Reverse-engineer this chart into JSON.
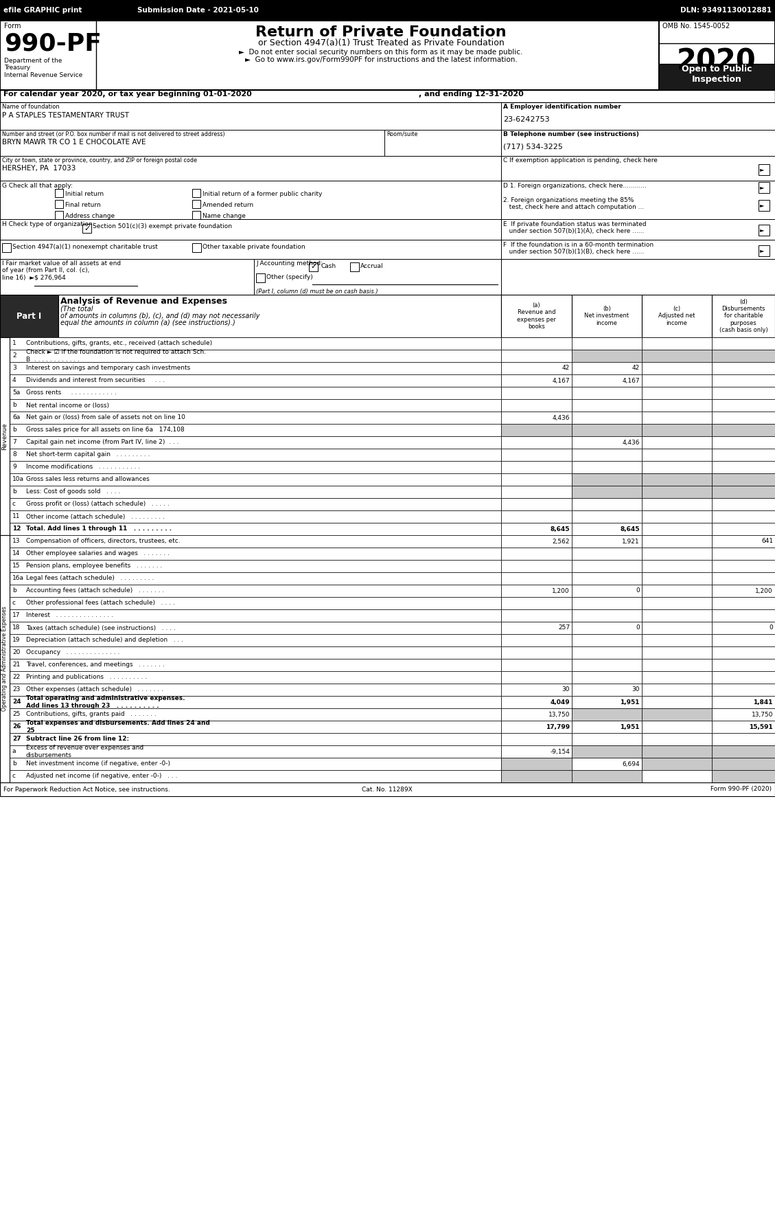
{
  "page_bg": "#ffffff",
  "header_bar_text": [
    "efile GRAPHIC print",
    "Submission Date - 2021-05-10",
    "DLN: 93491130012881"
  ],
  "form_number": "990-PF",
  "omb_text": "OMB No. 1545-0052",
  "year": "2020",
  "rows": [
    {
      "num": "1",
      "label": "Contributions, gifts, grants, etc., received (attach schedule)",
      "a": "",
      "b": "",
      "c": "",
      "d": "",
      "shaded_b": false,
      "shaded_c": false,
      "shaded_d": false
    },
    {
      "num": "2",
      "label": "Check ► ☑ if the foundation is not required to attach Sch.\nB  . . . . . . . . . . . .",
      "a": "",
      "b": "",
      "c": "",
      "d": "",
      "shaded_b": true,
      "shaded_c": true,
      "shaded_d": true
    },
    {
      "num": "3",
      "label": "Interest on savings and temporary cash investments",
      "a": "42",
      "b": "42",
      "c": "",
      "d": ""
    },
    {
      "num": "4",
      "label": "Dividends and interest from securities     . . .",
      "a": "4,167",
      "b": "4,167",
      "c": "",
      "d": ""
    },
    {
      "num": "5a",
      "label": "Gross rents     . . . . . . . . . . . .",
      "a": "",
      "b": "",
      "c": "",
      "d": ""
    },
    {
      "num": "b",
      "label": "Net rental income or (loss)",
      "a": "",
      "b": "",
      "c": "",
      "d": ""
    },
    {
      "num": "6a",
      "label": "Net gain or (loss) from sale of assets not on line 10",
      "a": "4,436",
      "b": "",
      "c": "",
      "d": ""
    },
    {
      "num": "b",
      "label": "Gross sales price for all assets on line 6a   174,108",
      "a": "",
      "b": "",
      "c": "",
      "d": "",
      "shaded_a": true,
      "shaded_b": true,
      "shaded_c": true,
      "shaded_d": true
    },
    {
      "num": "7",
      "label": "Capital gain net income (from Part IV, line 2)  . . .",
      "a": "",
      "b": "4,436",
      "c": "",
      "d": ""
    },
    {
      "num": "8",
      "label": "Net short-term capital gain   . . . . . . . . .",
      "a": "",
      "b": "",
      "c": "",
      "d": "",
      "shaded_b": false
    },
    {
      "num": "9",
      "label": "Income modifications   . . . . . . . . . . .",
      "a": "",
      "b": "",
      "c": "",
      "d": "",
      "shaded_b": false
    },
    {
      "num": "10a",
      "label": "Gross sales less returns and allowances",
      "a": "",
      "b": "",
      "c": "",
      "d": "",
      "shaded_b": true,
      "shaded_c": true,
      "shaded_d": true
    },
    {
      "num": "b",
      "label": "Less: Cost of goods sold   . . . .",
      "a": "",
      "b": "",
      "c": "",
      "d": "",
      "shaded_b": true,
      "shaded_c": true,
      "shaded_d": true
    },
    {
      "num": "c",
      "label": "Gross profit or (loss) (attach schedule)   . . . . .",
      "a": "",
      "b": "",
      "c": "",
      "d": ""
    },
    {
      "num": "11",
      "label": "Other income (attach schedule)   . . . . . . . . .",
      "a": "",
      "b": "",
      "c": "",
      "d": ""
    },
    {
      "num": "12",
      "label": "Total. Add lines 1 through 11   . . . . . . . . .",
      "a": "8,645",
      "b": "8,645",
      "c": "",
      "d": "",
      "bold": true
    },
    {
      "num": "13",
      "label": "Compensation of officers, directors, trustees, etc.",
      "a": "2,562",
      "b": "1,921",
      "c": "",
      "d": "641"
    },
    {
      "num": "14",
      "label": "Other employee salaries and wages   . . . . . . .",
      "a": "",
      "b": "",
      "c": "",
      "d": ""
    },
    {
      "num": "15",
      "label": "Pension plans, employee benefits   . . . . . . .",
      "a": "",
      "b": "",
      "c": "",
      "d": ""
    },
    {
      "num": "16a",
      "label": "Legal fees (attach schedule)   . . . . . . . . .",
      "a": "",
      "b": "",
      "c": "",
      "d": ""
    },
    {
      "num": "b",
      "label": "Accounting fees (attach schedule)   . . . . . . .",
      "a": "1,200",
      "b": "0",
      "c": "",
      "d": "1,200"
    },
    {
      "num": "c",
      "label": "Other professional fees (attach schedule)   . . . .",
      "a": "",
      "b": "",
      "c": "",
      "d": ""
    },
    {
      "num": "17",
      "label": "Interest   . . . . . . . . . . . . . . .",
      "a": "",
      "b": "",
      "c": "",
      "d": ""
    },
    {
      "num": "18",
      "label": "Taxes (attach schedule) (see instructions)   . . . .",
      "a": "257",
      "b": "0",
      "c": "",
      "d": "0"
    },
    {
      "num": "19",
      "label": "Depreciation (attach schedule) and depletion   . . .",
      "a": "",
      "b": "",
      "c": "",
      "d": ""
    },
    {
      "num": "20",
      "label": "Occupancy   . . . . . . . . . . . . . .",
      "a": "",
      "b": "",
      "c": "",
      "d": ""
    },
    {
      "num": "21",
      "label": "Travel, conferences, and meetings   . . . . . . .",
      "a": "",
      "b": "",
      "c": "",
      "d": ""
    },
    {
      "num": "22",
      "label": "Printing and publications   . . . . . . . . . .",
      "a": "",
      "b": "",
      "c": "",
      "d": ""
    },
    {
      "num": "23",
      "label": "Other expenses (attach schedule)   . . . . . . .",
      "a": "30",
      "b": "30",
      "c": "",
      "d": ""
    },
    {
      "num": "24",
      "label": "Total operating and administrative expenses.\nAdd lines 13 through 23   . . . . . . . . . .",
      "a": "4,049",
      "b": "1,951",
      "c": "",
      "d": "1,841",
      "bold": true
    },
    {
      "num": "25",
      "label": "Contributions, gifts, grants paid   . . . . . . .",
      "a": "13,750",
      "b": "",
      "c": "",
      "d": "13,750",
      "shaded_b": true,
      "shaded_c": true
    },
    {
      "num": "26",
      "label": "Total expenses and disbursements. Add lines 24 and\n25",
      "a": "17,799",
      "b": "1,951",
      "c": "",
      "d": "15,591",
      "bold": true
    },
    {
      "num": "27",
      "label": "Subtract line 26 from line 12:",
      "a": "",
      "b": "",
      "c": "",
      "d": "",
      "bold": true,
      "header": true
    },
    {
      "num": "a",
      "label": "Excess of revenue over expenses and\ndisbursements",
      "a": "-9,154",
      "b": "",
      "c": "",
      "d": "",
      "shaded_b": true,
      "shaded_c": true,
      "shaded_d": true
    },
    {
      "num": "b",
      "label": "Net investment income (if negative, enter -0-)",
      "a": "",
      "b": "6,694",
      "c": "",
      "d": "",
      "shaded_a": true,
      "shaded_c": true,
      "shaded_d": true
    },
    {
      "num": "c",
      "label": "Adjusted net income (if negative, enter -0-)   . . .",
      "a": "",
      "b": "",
      "c": "",
      "d": "",
      "shaded_a": true,
      "shaded_b": true,
      "shaded_d": true
    }
  ],
  "rev_rows": 16,
  "footer_left": "For Paperwork Reduction Act Notice, see instructions.",
  "footer_center": "Cat. No. 11289X",
  "footer_right": "Form 990-PF (2020)"
}
